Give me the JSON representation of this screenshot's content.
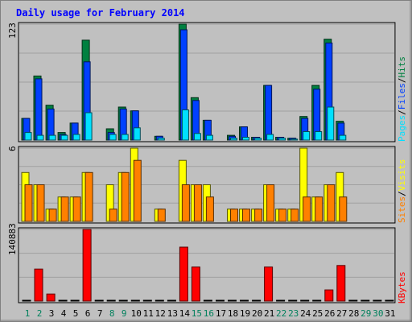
{
  "page_title": "Daily usage for February 2014",
  "colors": {
    "background": "#c0c0c0",
    "title": "#0000ff",
    "hits": "#008040",
    "files": "#0040ff",
    "pages": "#00e0ff",
    "visits": "#ffff00",
    "sites": "#ff8000",
    "kbytes": "#ff0000",
    "weekday_label": "#000000",
    "weekend_label": "#00805c"
  },
  "panels": {
    "top": {
      "max_label": "123",
      "legend": [
        "Pages",
        "Files",
        "Hits"
      ]
    },
    "middle": {
      "max_label": "6",
      "legend": [
        "Sites",
        "Visits"
      ]
    },
    "bottom": {
      "max_label": "140883",
      "legend": [
        "KBytes"
      ]
    }
  },
  "chart_data": [
    {
      "type": "bar",
      "title": "Daily usage for February 2014",
      "ylim": [
        0,
        123
      ],
      "categories": [
        "1",
        "2",
        "3",
        "4",
        "5",
        "6",
        "7",
        "8",
        "9",
        "10",
        "11",
        "12",
        "13",
        "14",
        "15",
        "16",
        "17",
        "18",
        "19",
        "20",
        "21",
        "22",
        "23",
        "24",
        "25",
        "26",
        "27",
        "28",
        "29",
        "30",
        "31"
      ],
      "series": [
        {
          "name": "Hits",
          "values": [
            23,
            68,
            37,
            8,
            18,
            106,
            0,
            12,
            35,
            31,
            0,
            4,
            0,
            123,
            45,
            21,
            0,
            5,
            14,
            3,
            58,
            3,
            2,
            25,
            58,
            107,
            20,
            0,
            0,
            0,
            0
          ]
        },
        {
          "name": "Files",
          "values": [
            23,
            65,
            33,
            6,
            18,
            83,
            0,
            8,
            33,
            31,
            0,
            4,
            0,
            117,
            42,
            21,
            0,
            4,
            14,
            3,
            58,
            3,
            2,
            23,
            54,
            103,
            18,
            0,
            0,
            0,
            0
          ]
        },
        {
          "name": "Pages",
          "values": [
            8,
            5,
            5,
            5,
            6,
            29,
            0,
            6,
            6,
            13,
            0,
            2,
            0,
            32,
            7,
            5,
            0,
            2,
            3,
            2,
            6,
            2,
            1,
            9,
            9,
            35,
            5,
            0,
            0,
            0,
            0
          ]
        }
      ]
    },
    {
      "type": "bar",
      "ylim": [
        0,
        6
      ],
      "categories": [
        "1",
        "2",
        "3",
        "4",
        "5",
        "6",
        "7",
        "8",
        "9",
        "10",
        "11",
        "12",
        "13",
        "14",
        "15",
        "16",
        "17",
        "18",
        "19",
        "20",
        "21",
        "22",
        "23",
        "24",
        "25",
        "26",
        "27",
        "28",
        "29",
        "30",
        "31"
      ],
      "series": [
        {
          "name": "Visits",
          "values": [
            4,
            3,
            1,
            2,
            2,
            4,
            0,
            3,
            4,
            6,
            0,
            1,
            0,
            5,
            3,
            3,
            0,
            1,
            1,
            1,
            3,
            1,
            1,
            6,
            2,
            3,
            4,
            0,
            0,
            0,
            0
          ]
        },
        {
          "name": "Sites",
          "values": [
            3,
            3,
            1,
            2,
            2,
            4,
            0,
            1,
            4,
            5,
            0,
            1,
            0,
            3,
            3,
            2,
            0,
            1,
            1,
            1,
            3,
            1,
            1,
            2,
            2,
            3,
            2,
            0,
            0,
            0,
            0
          ]
        }
      ]
    },
    {
      "type": "bar",
      "ylim": [
        0,
        140883
      ],
      "categories": [
        "1",
        "2",
        "3",
        "4",
        "5",
        "6",
        "7",
        "8",
        "9",
        "10",
        "11",
        "12",
        "13",
        "14",
        "15",
        "16",
        "17",
        "18",
        "19",
        "20",
        "21",
        "22",
        "23",
        "24",
        "25",
        "26",
        "27",
        "28",
        "29",
        "30",
        "31"
      ],
      "series": [
        {
          "name": "KBytes",
          "values": [
            0,
            63000,
            14000,
            0,
            0,
            140883,
            0,
            0,
            0,
            0,
            0,
            0,
            0,
            106000,
            67000,
            0,
            0,
            0,
            0,
            0,
            67000,
            0,
            0,
            0,
            0,
            22000,
            70000,
            0,
            0,
            0,
            0
          ]
        }
      ]
    }
  ]
}
